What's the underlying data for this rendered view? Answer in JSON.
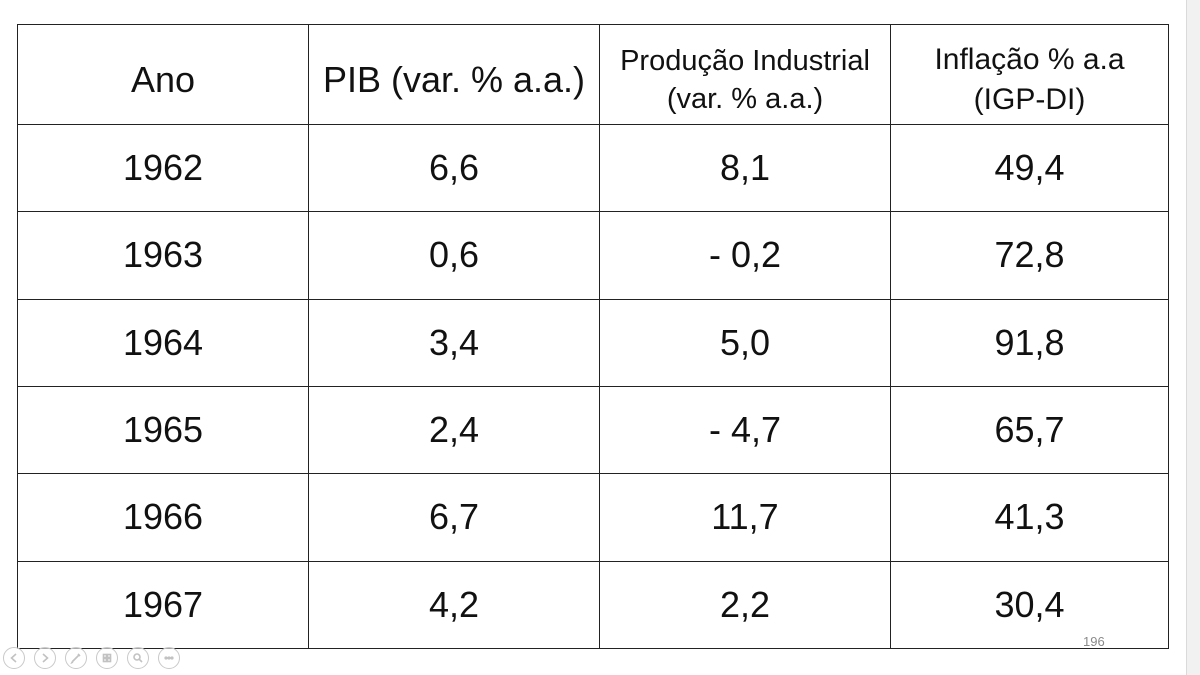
{
  "table": {
    "headers": {
      "ano": "Ano",
      "pib": "PIB (var. % a.a.)",
      "producao_line1": "Produção Industrial",
      "producao_line2": "(var. % a.a.)",
      "inflacao_line1": "Inflação % a.a",
      "inflacao_line2": "(IGP-DI)"
    },
    "rows": [
      {
        "ano": "1962",
        "pib": "6,6",
        "producao": "8,1",
        "inflacao": "49,4"
      },
      {
        "ano": "1963",
        "pib": "0,6",
        "producao": "- 0,2",
        "inflacao": "72,8"
      },
      {
        "ano": "1964",
        "pib": "3,4",
        "producao": "5,0",
        "inflacao": "91,8"
      },
      {
        "ano": "1965",
        "pib": "2,4",
        "producao": "- 4,7",
        "inflacao": "65,7"
      },
      {
        "ano": "1966",
        "pib": "6,7",
        "producao": "11,7",
        "inflacao": "41,3"
      },
      {
        "ano": "1967",
        "pib": "4,2",
        "producao": "2,2",
        "inflacao": "30,4"
      }
    ]
  },
  "slide": {
    "page_number": "196"
  },
  "toolbar": {
    "icons": [
      "previous-slide-icon",
      "next-slide-icon",
      "pen-icon",
      "slides-grid-icon",
      "zoom-icon",
      "more-options-icon"
    ]
  }
}
